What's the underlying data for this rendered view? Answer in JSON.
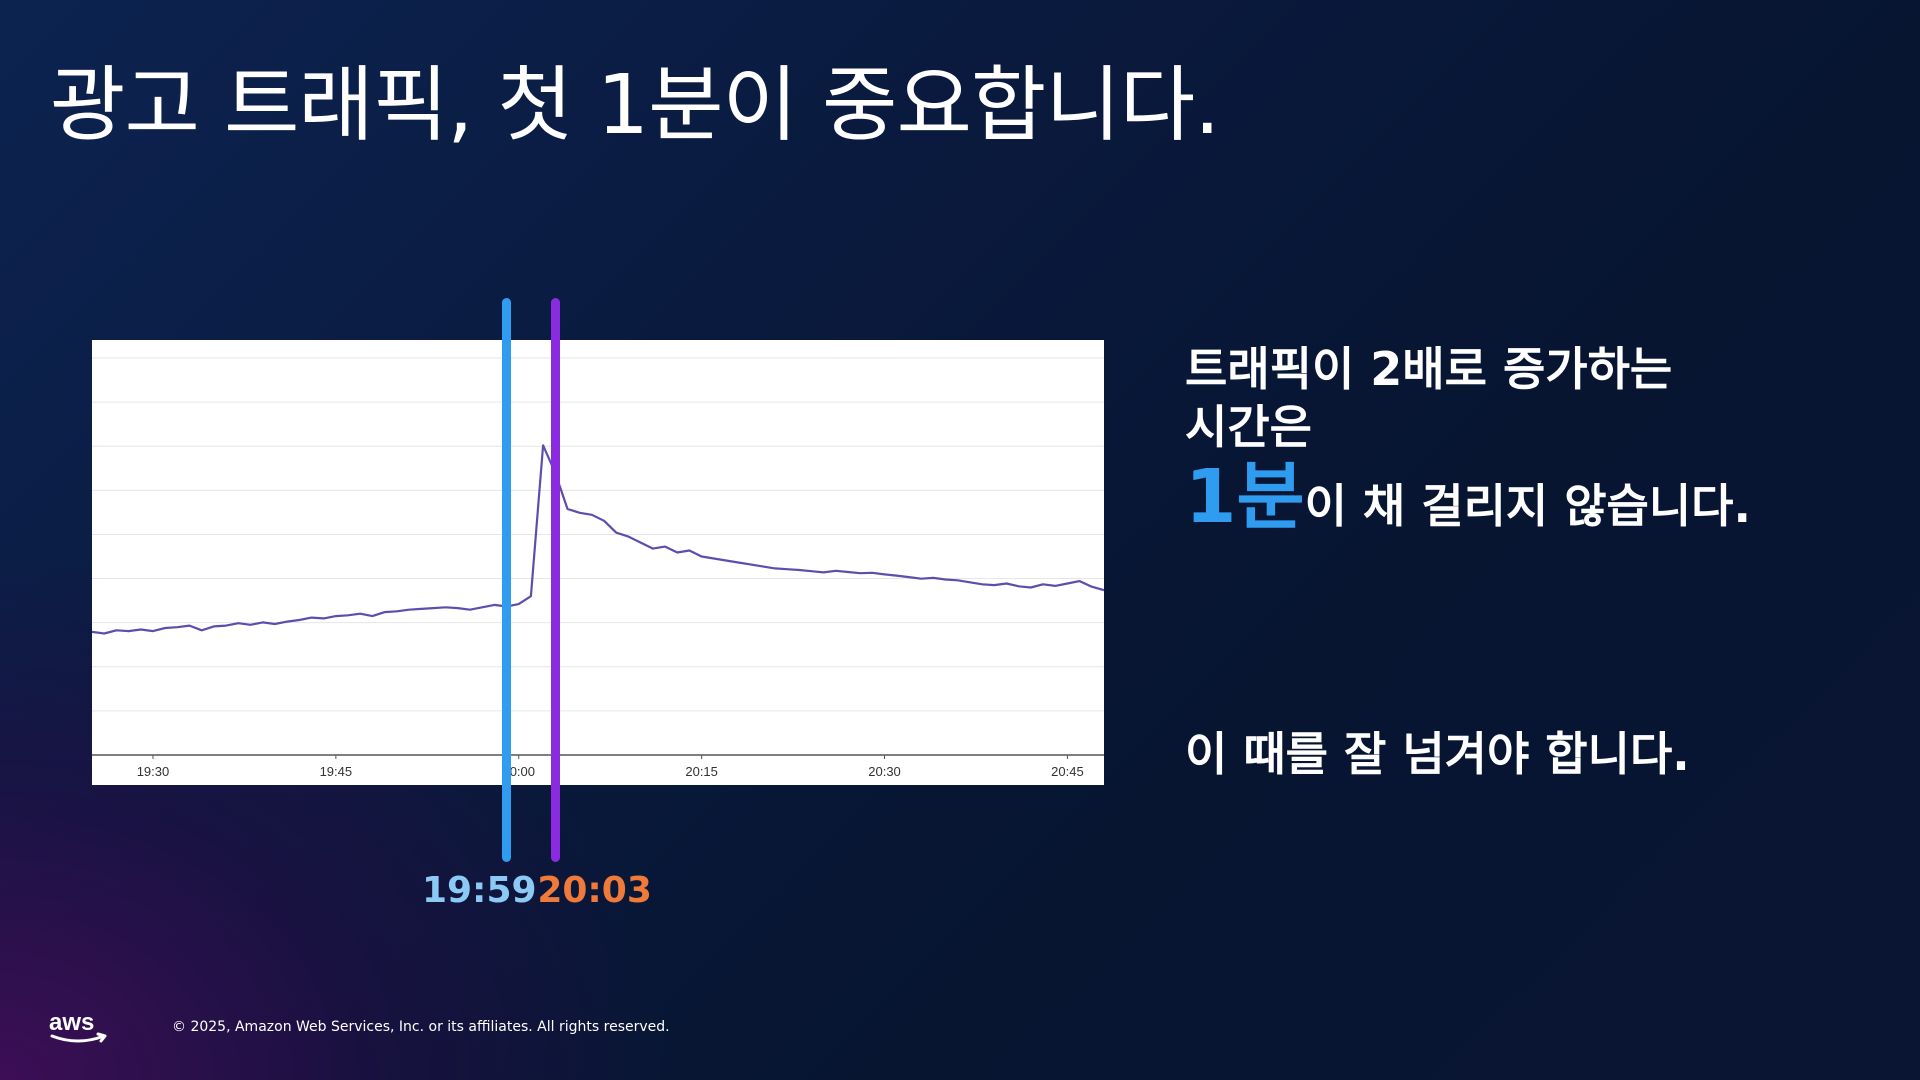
{
  "slide": {
    "title": "광고 트래픽, 첫 1분이 중요합니다.",
    "copyright": "© 2025, Amazon Web Services, Inc. or its affiliates. All rights reserved.",
    "logo": "aws-logo"
  },
  "text": {
    "line1": "트래픽이 2배로 증가하는",
    "line2": "시간은",
    "emphasis": "1분",
    "line3_rest": "이 채 걸리지 않습니다.",
    "line4": "이 때를 잘 넘겨야 합니다."
  },
  "markers": [
    {
      "time": "19:59",
      "line_color": "#2f9cf0",
      "label_color": "#8cc9f5"
    },
    {
      "time": "20:03",
      "line_color": "#8a2be2",
      "label_color": "#f07a3a"
    }
  ],
  "chart_data": {
    "type": "line",
    "xlim": [
      "19:25",
      "20:48"
    ],
    "ylim": [
      0,
      100
    ],
    "grid": true,
    "x_ticks": [
      "19:30",
      "19:45",
      "20:00",
      "20:15",
      "20:30",
      "20:45"
    ],
    "line_color": "#5b4fae",
    "series": [
      {
        "x": [
          "19:25",
          "19:26",
          "19:27",
          "19:28",
          "19:29",
          "19:30",
          "19:31",
          "19:32",
          "19:33",
          "19:34",
          "19:35",
          "19:36",
          "19:37",
          "19:38",
          "19:39",
          "19:40",
          "19:41",
          "19:42",
          "19:43",
          "19:44",
          "19:45",
          "19:46",
          "19:47",
          "19:48",
          "19:49",
          "19:50",
          "19:51",
          "19:52",
          "19:53",
          "19:54",
          "19:55",
          "19:56",
          "19:57",
          "19:58",
          "19:59",
          "20:00",
          "20:01",
          "20:02",
          "20:03",
          "20:04",
          "20:05",
          "20:06",
          "20:07",
          "20:08",
          "20:09",
          "20:10",
          "20:11",
          "20:12",
          "20:13",
          "20:14",
          "20:15",
          "20:16",
          "20:17",
          "20:18",
          "20:19",
          "20:20",
          "20:21",
          "20:22",
          "20:23",
          "20:24",
          "20:25",
          "20:26",
          "20:27",
          "20:28",
          "20:29",
          "20:30",
          "20:31",
          "20:32",
          "20:33",
          "20:34",
          "20:35",
          "20:36",
          "20:37",
          "20:38",
          "20:39",
          "20:40",
          "20:41",
          "20:42",
          "20:43",
          "20:44",
          "20:45",
          "20:46",
          "20:47",
          "20:48"
        ],
        "values": [
          31.0,
          30.6,
          31.4,
          31.2,
          31.6,
          31.2,
          32.0,
          32.2,
          32.6,
          31.4,
          32.4,
          32.6,
          33.2,
          32.8,
          33.4,
          33.0,
          33.6,
          34.0,
          34.6,
          34.4,
          35.0,
          35.2,
          35.6,
          35.0,
          36.0,
          36.2,
          36.6,
          36.8,
          37.0,
          37.2,
          37.0,
          36.6,
          37.2,
          37.8,
          37.4,
          38.0,
          40.0,
          78.0,
          71.0,
          62.0,
          61.0,
          60.5,
          59.0,
          56.0,
          55.0,
          53.5,
          52.0,
          52.5,
          51.0,
          51.5,
          50.0,
          49.5,
          49.0,
          48.5,
          48.0,
          47.5,
          47.0,
          46.8,
          46.6,
          46.3,
          46.0,
          46.4,
          46.1,
          45.8,
          45.9,
          45.5,
          45.2,
          44.8,
          44.4,
          44.6,
          44.2,
          44.0,
          43.5,
          43.0,
          42.8,
          43.2,
          42.5,
          42.2,
          43.0,
          42.6,
          43.2,
          43.8,
          42.4,
          41.5
        ]
      }
    ]
  }
}
